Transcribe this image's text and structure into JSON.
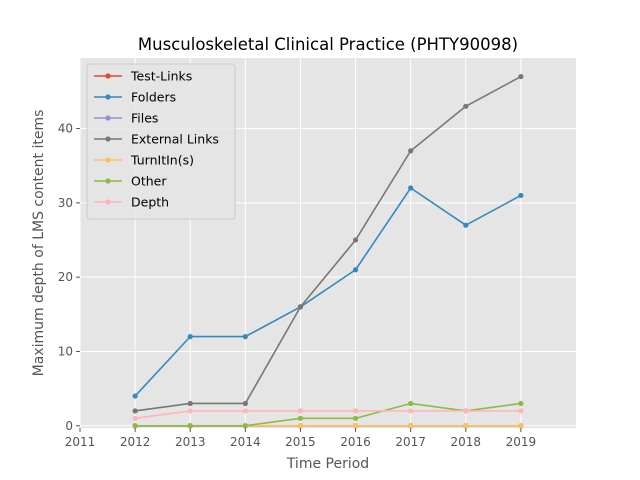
{
  "chart_data": {
    "type": "line",
    "title": "Musculoskeletal Clinical Practice (PHTY90098)",
    "xlabel": "Time Period",
    "ylabel": "Maximum depth of LMS content items",
    "xlim": [
      2011,
      2020
    ],
    "ylim": [
      -0.3,
      49.5
    ],
    "xticks": [
      2011,
      2012,
      2013,
      2014,
      2015,
      2016,
      2017,
      2018,
      2019
    ],
    "yticks": [
      0,
      10,
      20,
      30,
      40
    ],
    "grid": true,
    "legend_position": "upper-left",
    "x": [
      2012,
      2013,
      2014,
      2015,
      2016,
      2017,
      2018,
      2019
    ],
    "series": [
      {
        "name": "Test-Links",
        "color": "#E24A33",
        "values": [
          0,
          0,
          0,
          0,
          0,
          0,
          0,
          0
        ]
      },
      {
        "name": "Folders",
        "color": "#348ABD",
        "values": [
          4,
          12,
          12,
          16,
          21,
          32,
          27,
          31
        ]
      },
      {
        "name": "Files",
        "color": "#988ED5",
        "values": [
          0,
          0,
          0,
          0,
          0,
          0,
          0,
          0
        ]
      },
      {
        "name": "External Links",
        "color": "#777777",
        "values": [
          2,
          3,
          3,
          16,
          25,
          37,
          43,
          47
        ]
      },
      {
        "name": "TurnItIn(s)",
        "color": "#FBC15E",
        "values": [
          0,
          0,
          0,
          0,
          0,
          0,
          0,
          0
        ]
      },
      {
        "name": "Other",
        "color": "#8EBA42",
        "values": [
          0,
          0,
          0,
          1,
          1,
          3,
          2,
          3
        ]
      },
      {
        "name": "Depth",
        "color": "#FFB5B8",
        "values": [
          1,
          2,
          2,
          2,
          2,
          2,
          2,
          2
        ]
      }
    ]
  }
}
